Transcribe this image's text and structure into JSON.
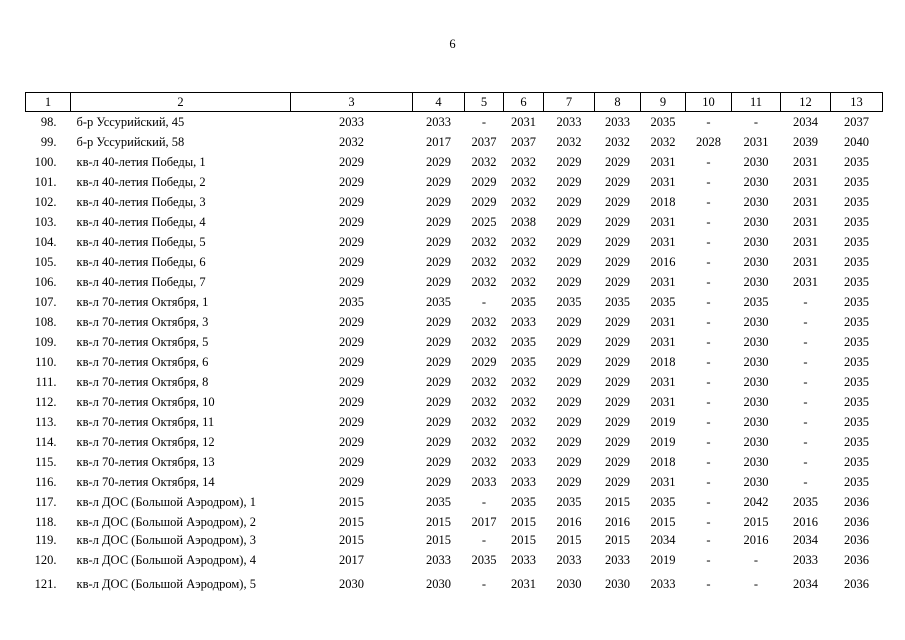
{
  "page_number": "6",
  "table": {
    "header": [
      "1",
      "2",
      "3",
      "4",
      "5",
      "6",
      "7",
      "8",
      "9",
      "10",
      "11",
      "12",
      "13"
    ],
    "rows": [
      [
        "98.",
        "б-р Уссурийский, 45",
        "2033",
        "2033",
        "-",
        "2031",
        "2033",
        "2033",
        "2035",
        "-",
        "-",
        "2034",
        "2037"
      ],
      [
        "99.",
        "б-р Уссурийский, 58",
        "2032",
        "2017",
        "2037",
        "2037",
        "2032",
        "2032",
        "2032",
        "2028",
        "2031",
        "2039",
        "2040"
      ],
      [
        "100.",
        "кв-л 40-летия Победы, 1",
        "2029",
        "2029",
        "2032",
        "2032",
        "2029",
        "2029",
        "2031",
        "-",
        "2030",
        "2031",
        "2035"
      ],
      [
        "101.",
        "кв-л 40-летия Победы, 2",
        "2029",
        "2029",
        "2029",
        "2032",
        "2029",
        "2029",
        "2031",
        "-",
        "2030",
        "2031",
        "2035"
      ],
      [
        "102.",
        "кв-л 40-летия Победы, 3",
        "2029",
        "2029",
        "2029",
        "2032",
        "2029",
        "2029",
        "2018",
        "-",
        "2030",
        "2031",
        "2035"
      ],
      [
        "103.",
        "кв-л 40-летия Победы, 4",
        "2029",
        "2029",
        "2025",
        "2038",
        "2029",
        "2029",
        "2031",
        "-",
        "2030",
        "2031",
        "2035"
      ],
      [
        "104.",
        "кв-л 40-летия Победы, 5",
        "2029",
        "2029",
        "2032",
        "2032",
        "2029",
        "2029",
        "2031",
        "-",
        "2030",
        "2031",
        "2035"
      ],
      [
        "105.",
        "кв-л 40-летия Победы, 6",
        "2029",
        "2029",
        "2032",
        "2032",
        "2029",
        "2029",
        "2016",
        "-",
        "2030",
        "2031",
        "2035"
      ],
      [
        "106.",
        "кв-л 40-летия Победы, 7",
        "2029",
        "2029",
        "2032",
        "2032",
        "2029",
        "2029",
        "2031",
        "-",
        "2030",
        "2031",
        "2035"
      ],
      [
        "107.",
        "кв-л 70-летия Октября, 1",
        "2035",
        "2035",
        "-",
        "2035",
        "2035",
        "2035",
        "2035",
        "-",
        "2035",
        "-",
        "2035"
      ],
      [
        "108.",
        "кв-л 70-летия Октября, 3",
        "2029",
        "2029",
        "2032",
        "2033",
        "2029",
        "2029",
        "2031",
        "-",
        "2030",
        "-",
        "2035"
      ],
      [
        "109.",
        "кв-л 70-летия Октября, 5",
        "2029",
        "2029",
        "2032",
        "2035",
        "2029",
        "2029",
        "2031",
        "-",
        "2030",
        "-",
        "2035"
      ],
      [
        "110.",
        "кв-л 70-летия Октября, 6",
        "2029",
        "2029",
        "2029",
        "2035",
        "2029",
        "2029",
        "2018",
        "-",
        "2030",
        "-",
        "2035"
      ],
      [
        "111.",
        "кв-л 70-летия Октября, 8",
        "2029",
        "2029",
        "2032",
        "2032",
        "2029",
        "2029",
        "2031",
        "-",
        "2030",
        "-",
        "2035"
      ],
      [
        "112.",
        "кв-л 70-летия Октября, 10",
        "2029",
        "2029",
        "2032",
        "2032",
        "2029",
        "2029",
        "2031",
        "-",
        "2030",
        "-",
        "2035"
      ],
      [
        "113.",
        "кв-л 70-летия Октября, 11",
        "2029",
        "2029",
        "2032",
        "2032",
        "2029",
        "2029",
        "2019",
        "-",
        "2030",
        "-",
        "2035"
      ],
      [
        "114.",
        "кв-л 70-летия Октября, 12",
        "2029",
        "2029",
        "2032",
        "2032",
        "2029",
        "2029",
        "2019",
        "-",
        "2030",
        "-",
        "2035"
      ],
      [
        "115.",
        "кв-л 70-летия Октября, 13",
        "2029",
        "2029",
        "2032",
        "2033",
        "2029",
        "2029",
        "2018",
        "-",
        "2030",
        "-",
        "2035"
      ],
      [
        "116.",
        "кв-л 70-летия Октября, 14",
        "2029",
        "2029",
        "2033",
        "2033",
        "2029",
        "2029",
        "2031",
        "-",
        "2030",
        "-",
        "2035"
      ],
      [
        "117.",
        "кв-л ДОС (Большой Аэродром), 1",
        "2015",
        "2035",
        "-",
        "2035",
        "2035",
        "2015",
        "2035",
        "-",
        "2042",
        "2035",
        "2036"
      ],
      [
        "118.",
        "кв-л ДОС (Большой Аэродром), 2",
        "2015",
        "2015",
        "2017",
        "2015",
        "2016",
        "2016",
        "2015",
        "-",
        "2015",
        "2016",
        "2036"
      ],
      [
        "119.",
        "кв-л ДОС (Большой Аэродром), 3",
        "2015",
        "2015",
        "-",
        "2015",
        "2015",
        "2015",
        "2034",
        "-",
        "2016",
        "2034",
        "2036"
      ],
      [
        "120.",
        "кв-л ДОС (Большой Аэродром), 4",
        "2017",
        "2033",
        "2035",
        "2033",
        "2033",
        "2033",
        "2019",
        "-",
        "-",
        "2033",
        "2036"
      ],
      [
        "121.",
        "кв-л ДОС (Большой Аэродром), 5",
        "2030",
        "2030",
        "-",
        "2031",
        "2030",
        "2030",
        "2033",
        "-",
        "-",
        "2034",
        "2036"
      ]
    ]
  }
}
